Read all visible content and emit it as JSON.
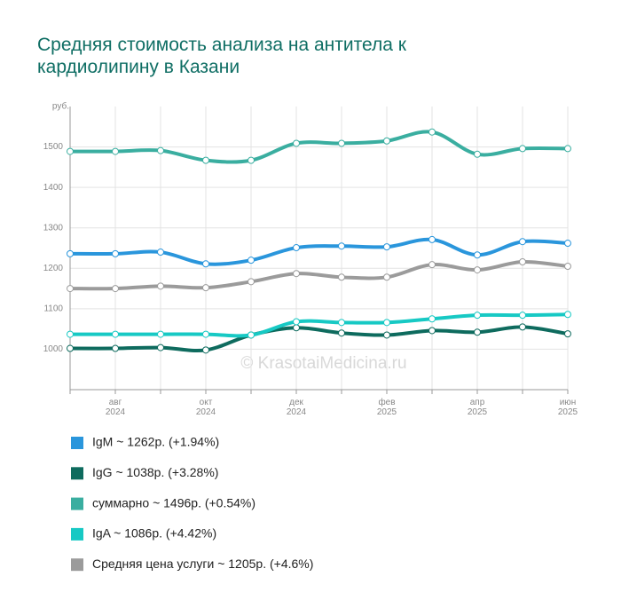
{
  "chart_data": {
    "type": "line",
    "title": "Средняя стоимость анализа на антитела к кардиолипину в Казани",
    "y_label": "руб.",
    "watermark": "© KrasotaiMedicina.ru",
    "categories": [
      null,
      [
        "авг",
        "2024"
      ],
      null,
      [
        "окт",
        "2024"
      ],
      null,
      [
        "дек",
        "2024"
      ],
      null,
      [
        "фев",
        "2025"
      ],
      null,
      [
        "апр",
        "2025"
      ],
      null,
      [
        "июн",
        "2025"
      ]
    ],
    "ylim": [
      900,
      1600
    ],
    "yticks": [
      1000,
      1100,
      1200,
      1300,
      1400,
      1500
    ],
    "grid": true,
    "series": [
      {
        "name": "IgM ~ 1262р. (+1.94%)",
        "color": "#2a96dc",
        "values": [
          1236,
          1236,
          1240,
          1211,
          1220,
          1251,
          1255,
          1253,
          1271,
          1233,
          1266,
          1262
        ]
      },
      {
        "name": "IgG ~ 1038р. (+3.28%)",
        "color": "#0e6b5e",
        "values": [
          1002,
          1002,
          1004,
          998,
          1035,
          1053,
          1040,
          1035,
          1046,
          1042,
          1055,
          1038
        ]
      },
      {
        "name": "суммарно ~ 1496р. (+0.54%)",
        "color": "#3aaea0",
        "values": [
          1489,
          1489,
          1491,
          1467,
          1467,
          1509,
          1509,
          1515,
          1537,
          1482,
          1496,
          1496
        ]
      },
      {
        "name": "IgA ~ 1086р. (+4.42%)",
        "color": "#17c9c4",
        "values": [
          1037,
          1037,
          1037,
          1037,
          1035,
          1068,
          1066,
          1066,
          1075,
          1084,
          1084,
          1086
        ]
      },
      {
        "name": "Средняя цена услуги ~ 1205р. (+4.6%)",
        "color": "#9b9b9b",
        "values": [
          1150,
          1150,
          1156,
          1152,
          1167,
          1187,
          1178,
          1178,
          1209,
          1196,
          1216,
          1205
        ]
      }
    ]
  }
}
